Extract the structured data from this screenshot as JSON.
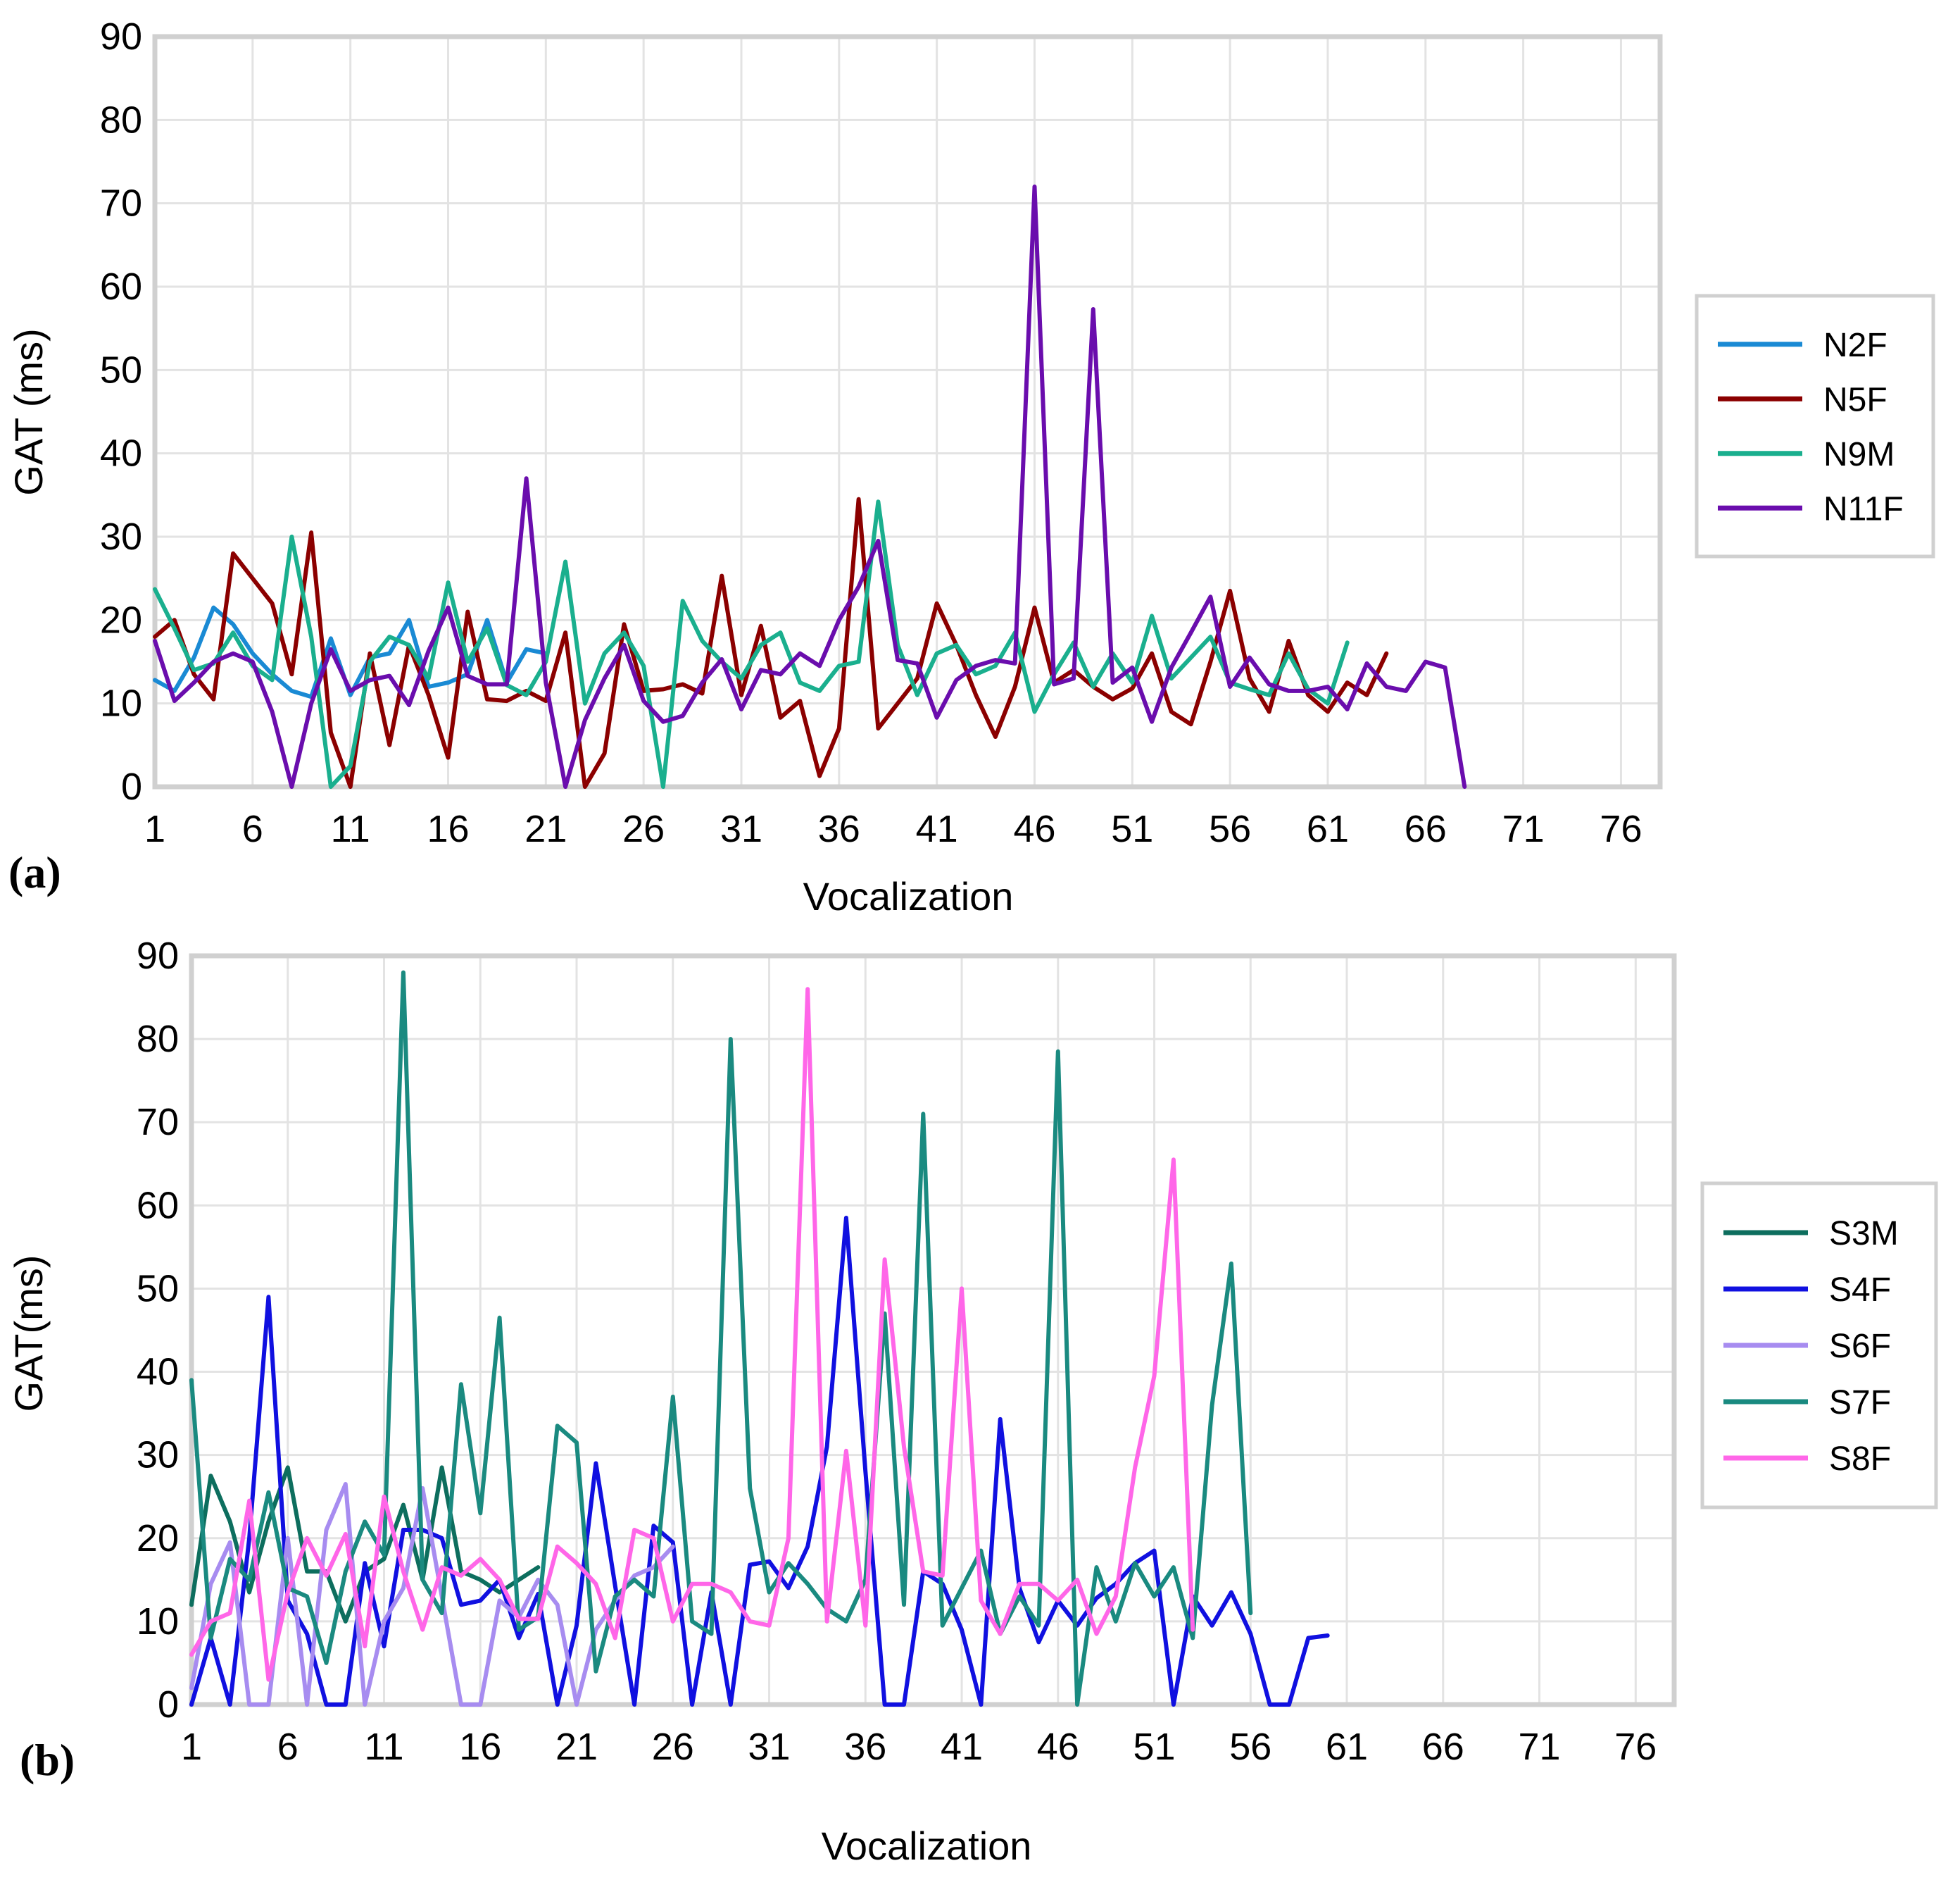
{
  "chart_data": [
    {
      "type": "line",
      "panel_label": "(a)",
      "title": "",
      "xlabel": "Vocalization",
      "ylabel": "GAT (ms)",
      "xlim": [
        1,
        78
      ],
      "ylim": [
        0,
        90
      ],
      "x_ticks": [
        "1",
        "6",
        "11",
        "16",
        "21",
        "26",
        "31",
        "36",
        "41",
        "46",
        "51",
        "56",
        "61",
        "66",
        "71",
        "76"
      ],
      "y_ticks": [
        "0",
        "10",
        "20",
        "30",
        "40",
        "50",
        "60",
        "70",
        "80",
        "90"
      ],
      "grid": true,
      "legend": "right",
      "series": [
        {
          "name": "N2F",
          "color": "#1a8ad4",
          "values": [
            12.8,
            11.5,
            15.5,
            21.5,
            19.5,
            16,
            13.5,
            11.5,
            10.8,
            17.8,
            11,
            15.5,
            16,
            20,
            12,
            12.5,
            13.5,
            20,
            12.5,
            16.5,
            16
          ]
        },
        {
          "name": "N5F",
          "color": "#8b0000",
          "values": [
            18,
            20,
            13.5,
            10.5,
            28,
            25,
            22,
            13.5,
            30.5,
            6.5,
            0,
            16,
            5,
            17,
            11,
            3.5,
            21,
            10.5,
            10.3,
            11.5,
            10.3,
            18.5,
            0,
            4,
            19.5,
            11.5,
            11.7,
            12.3,
            11.2,
            25.3,
            11,
            19.3,
            8.3,
            10.3,
            1.3,
            7,
            34.5,
            7,
            10,
            13,
            22,
            17,
            11,
            6,
            12,
            21.5,
            12.5,
            14,
            12,
            10.5,
            11.8,
            16,
            9,
            7.5,
            15,
            23.5,
            13,
            9,
            17.5,
            11,
            9,
            12.5,
            11,
            16
          ]
        },
        {
          "name": "N9M",
          "color": "#1aaf8e",
          "values": [
            23.7,
            19,
            14,
            14.8,
            18.5,
            14.5,
            12.8,
            30,
            18,
            0,
            2.5,
            15,
            18,
            17,
            13,
            24.5,
            15,
            19,
            12.2,
            11,
            15,
            27,
            10,
            16,
            18.5,
            14.5,
            0,
            22.3,
            17.5,
            15,
            13,
            17,
            18.5,
            12.5,
            11.5,
            14.5,
            15,
            34.2,
            17,
            11,
            16,
            17,
            13.5,
            14.5,
            18.5,
            9,
            13.5,
            17.3,
            12,
            16,
            12.5,
            20.5,
            13,
            15.5,
            18,
            12.5,
            11.7,
            11,
            16,
            11.7,
            10,
            17.3
          ]
        },
        {
          "name": "N11F",
          "color": "#6a0dad",
          "values": [
            17.5,
            10.3,
            12.5,
            15,
            16,
            15,
            9,
            0,
            10,
            16.5,
            11.5,
            12.8,
            13.3,
            9.8,
            16.3,
            21.5,
            13.3,
            12.3,
            12.3,
            37,
            12.5,
            0,
            8,
            13,
            17,
            10.3,
            7.8,
            8.5,
            12.5,
            15.3,
            9.3,
            14,
            13.5,
            16,
            14.5,
            20,
            24,
            29.5,
            15.2,
            14.8,
            8.3,
            12.8,
            14.5,
            15.2,
            14.8,
            72,
            12.3,
            13,
            57.3,
            12.5,
            14.3,
            7.8,
            14.3,
            18.5,
            22.8,
            12,
            15.5,
            12.3,
            11.5,
            11.5,
            12,
            9.3,
            14.8,
            12,
            11.5,
            15,
            14.3,
            0
          ]
        }
      ]
    },
    {
      "type": "line",
      "panel_label": "(b)",
      "title": "",
      "xlabel": "Vocalization",
      "ylabel": "GAT(ms)",
      "xlim": [
        1,
        78
      ],
      "ylim": [
        0,
        90
      ],
      "x_ticks": [
        "1",
        "6",
        "11",
        "16",
        "21",
        "26",
        "31",
        "36",
        "41",
        "46",
        "51",
        "56",
        "61",
        "66",
        "71",
        "76"
      ],
      "y_ticks": [
        "0",
        "10",
        "20",
        "30",
        "40",
        "50",
        "60",
        "70",
        "80",
        "90"
      ],
      "grid": true,
      "legend": "right",
      "series": [
        {
          "name": "S3M",
          "color": "#0d6e5e",
          "values": [
            12,
            27.5,
            22,
            13.5,
            22,
            28.5,
            16,
            16,
            10,
            16,
            17.5,
            24,
            15,
            28.5,
            16,
            15,
            13.5,
            15,
            16.5
          ]
        },
        {
          "name": "S4F",
          "color": "#1010e0",
          "values": [
            0,
            8,
            0,
            20,
            49,
            12.5,
            8.5,
            0,
            0,
            17,
            7,
            21,
            21,
            20,
            12,
            12.5,
            15,
            8,
            13.3,
            0,
            9.5,
            29,
            14.3,
            0,
            21.5,
            19.5,
            0,
            13.5,
            0,
            16.8,
            17.2,
            14,
            19,
            31,
            58.5,
            28,
            0,
            0,
            16,
            14.5,
            9,
            0,
            34.3,
            14,
            7.5,
            12.5,
            9.5,
            12.8,
            14.5,
            17,
            18.5,
            0,
            13,
            9.5,
            13.5,
            8.5,
            0,
            0,
            8,
            8.3
          ]
        },
        {
          "name": "S6F",
          "color": "#a78cf0",
          "values": [
            2,
            14.5,
            19.5,
            0,
            0,
            20,
            0,
            21,
            26.5,
            0,
            10,
            14,
            26,
            13,
            0,
            0,
            12.5,
            10.5,
            15,
            12,
            0,
            9,
            12.5,
            15.5,
            16.5,
            19
          ]
        },
        {
          "name": "S7F",
          "color": "#1a8a80",
          "values": [
            39,
            8,
            17.5,
            15,
            25.5,
            14,
            13,
            5,
            16,
            22,
            18,
            88,
            15,
            11,
            38.5,
            23,
            46.5,
            9,
            10.5,
            33.5,
            31.5,
            4,
            13,
            15,
            13,
            37,
            10,
            8.5,
            80,
            26,
            13.5,
            17,
            14.5,
            11.5,
            10,
            15,
            47,
            12,
            71,
            9.5,
            14,
            18.5,
            8.5,
            13,
            9.5,
            78.5,
            0,
            16.5,
            10,
            17,
            13,
            16.5,
            8,
            36,
            53,
            11
          ]
        },
        {
          "name": "S8F",
          "color": "#ff66e8",
          "values": [
            6,
            10,
            11,
            24.5,
            3,
            13.5,
            20,
            15.5,
            20.5,
            7,
            25,
            16,
            9,
            16.5,
            15.5,
            17.5,
            15,
            10.3,
            10.3,
            19,
            17,
            14.5,
            8,
            21,
            20,
            10,
            14.5,
            14.5,
            13.5,
            10,
            9.5,
            20,
            86,
            10,
            30.5,
            9.5,
            53.5,
            31,
            16,
            15.5,
            50,
            12.5,
            8.5,
            14.5,
            14.5,
            12.5,
            15,
            8.5,
            13,
            28.5,
            39.5,
            65.5,
            9
          ]
        }
      ]
    }
  ]
}
